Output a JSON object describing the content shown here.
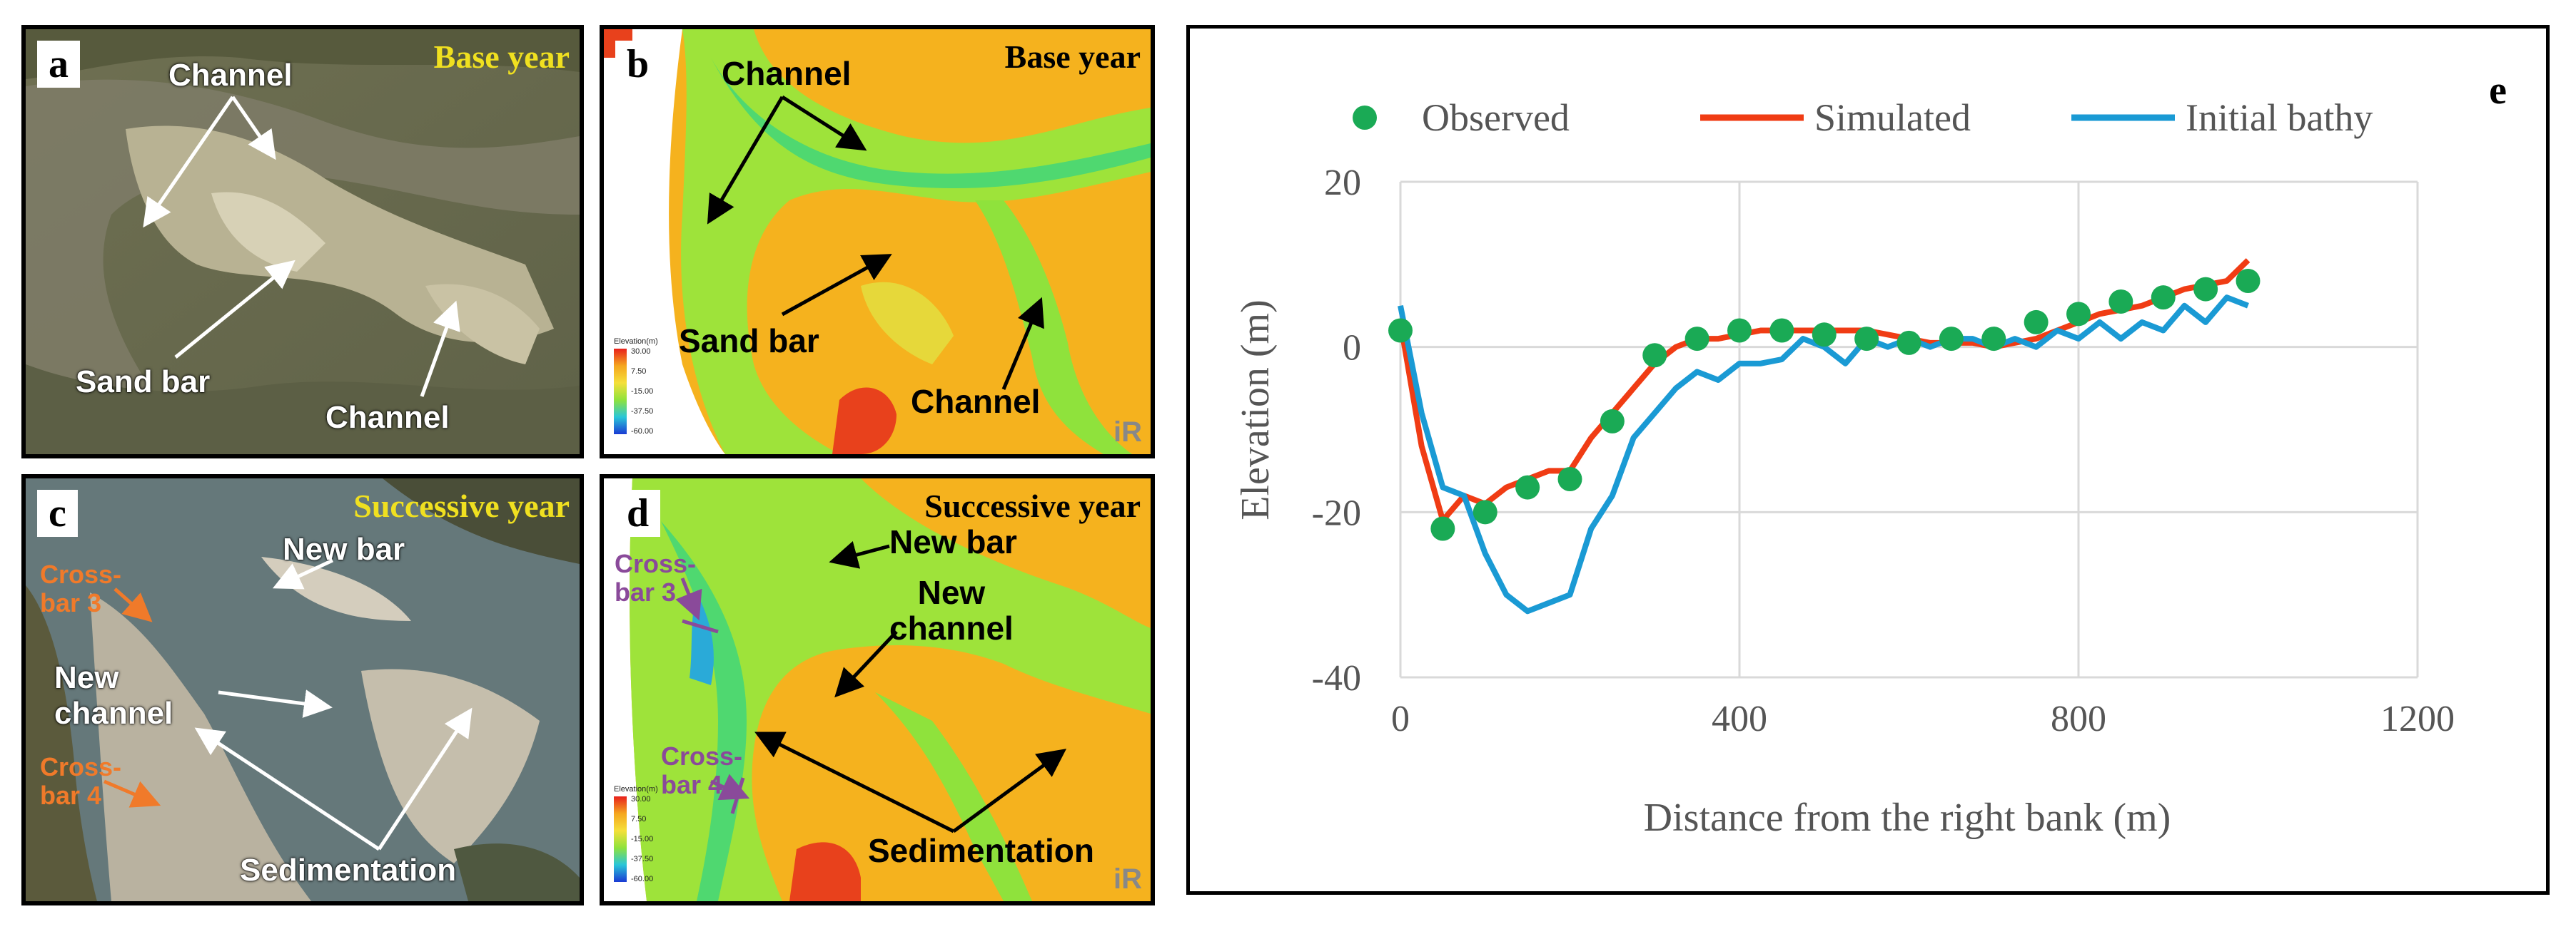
{
  "panels": {
    "a": {
      "label": "a",
      "title": "Base year",
      "annotations": {
        "channel_top": "Channel",
        "sand_bar": "Sand bar",
        "channel_bottom": "Channel"
      }
    },
    "b": {
      "label": "b",
      "title": "Base year",
      "annotations": {
        "channel_top": "Channel",
        "sand_bar": "Sand bar",
        "channel_bottom": "Channel"
      }
    },
    "c": {
      "label": "c",
      "title": "Successive year",
      "annotations": {
        "new_bar": "New bar",
        "cross_bar_3": "Cross-\nbar 3",
        "new_channel": "New\nchannel",
        "cross_bar_4": "Cross-\nbar 4",
        "sedimentation": "Sedimentation"
      }
    },
    "d": {
      "label": "d",
      "title": "Successive year",
      "annotations": {
        "new_bar": "New bar",
        "cross_bar_3": "Cross-\nbar 3",
        "new_channel": "New\nchannel",
        "cross_bar_4": "Cross-\nbar 4",
        "sedimentation": "Sedimentation"
      }
    }
  },
  "elevation_legend": {
    "title": "Elevation(m)",
    "ticks": [
      "30.00",
      "7.50",
      "-15.00",
      "-37.50",
      "-60.00"
    ]
  },
  "logo_text": "iR",
  "chart_data": {
    "type": "line",
    "panel_label": "e",
    "xlabel": "Distance from the right bank (m)",
    "ylabel": "Elevation (m)",
    "xlim": [
      0,
      1200
    ],
    "ylim": [
      -40,
      20
    ],
    "xticks": [
      0,
      400,
      800,
      1200
    ],
    "yticks": [
      20,
      0,
      -20,
      -40
    ],
    "xtick_labels": [
      "0",
      "400",
      "800",
      "1200"
    ],
    "ytick_labels": [
      "20",
      "0",
      "-20",
      "-40"
    ],
    "grid": true,
    "legend_position": "top",
    "series": [
      {
        "name": "Observed",
        "kind": "scatter",
        "color": "#1aaa55",
        "x": [
          0,
          50,
          100,
          150,
          200,
          250,
          300,
          350,
          400,
          450,
          500,
          550,
          600,
          650,
          700,
          750,
          800,
          850,
          900,
          950,
          1000
        ],
        "y": [
          2,
          -22,
          -20,
          -17,
          -16,
          -9,
          -1,
          1,
          2,
          2,
          1.5,
          1,
          0.5,
          1,
          1,
          3,
          4,
          5.5,
          6,
          7,
          8
        ]
      },
      {
        "name": "Simulated",
        "kind": "line",
        "color": "#f03c14",
        "x": [
          0,
          25,
          50,
          75,
          100,
          125,
          150,
          175,
          200,
          225,
          250,
          275,
          300,
          325,
          350,
          375,
          400,
          425,
          450,
          475,
          500,
          525,
          550,
          575,
          600,
          625,
          650,
          675,
          700,
          725,
          750,
          775,
          800,
          825,
          850,
          875,
          900,
          925,
          950,
          975,
          1000
        ],
        "y": [
          3,
          -12,
          -21,
          -18,
          -19,
          -17,
          -16,
          -15,
          -15,
          -11,
          -8,
          -5,
          -2,
          0,
          1,
          1,
          1.5,
          2,
          2,
          2,
          2,
          2,
          2,
          1.5,
          1,
          0.5,
          0.5,
          0.5,
          0,
          0.5,
          1,
          2,
          3,
          4,
          4.5,
          5,
          6,
          7,
          7.5,
          8,
          10.5
        ]
      },
      {
        "name": "Initial bathy",
        "kind": "line",
        "color": "#1a9ad4",
        "x": [
          0,
          25,
          50,
          75,
          100,
          125,
          150,
          175,
          200,
          225,
          250,
          275,
          300,
          325,
          350,
          375,
          400,
          425,
          450,
          475,
          500,
          525,
          550,
          575,
          600,
          625,
          650,
          675,
          700,
          725,
          750,
          775,
          800,
          825,
          850,
          875,
          900,
          925,
          950,
          975,
          1000
        ],
        "y": [
          5,
          -8,
          -17,
          -18,
          -25,
          -30,
          -32,
          -31,
          -30,
          -22,
          -18,
          -11,
          -8,
          -5,
          -3,
          -4,
          -2,
          -2,
          -1.5,
          1,
          0,
          -2,
          1,
          0,
          1,
          0,
          1,
          1,
          0,
          1,
          0,
          2,
          1,
          3,
          1,
          3,
          2,
          5,
          3,
          6,
          5
        ]
      }
    ]
  }
}
